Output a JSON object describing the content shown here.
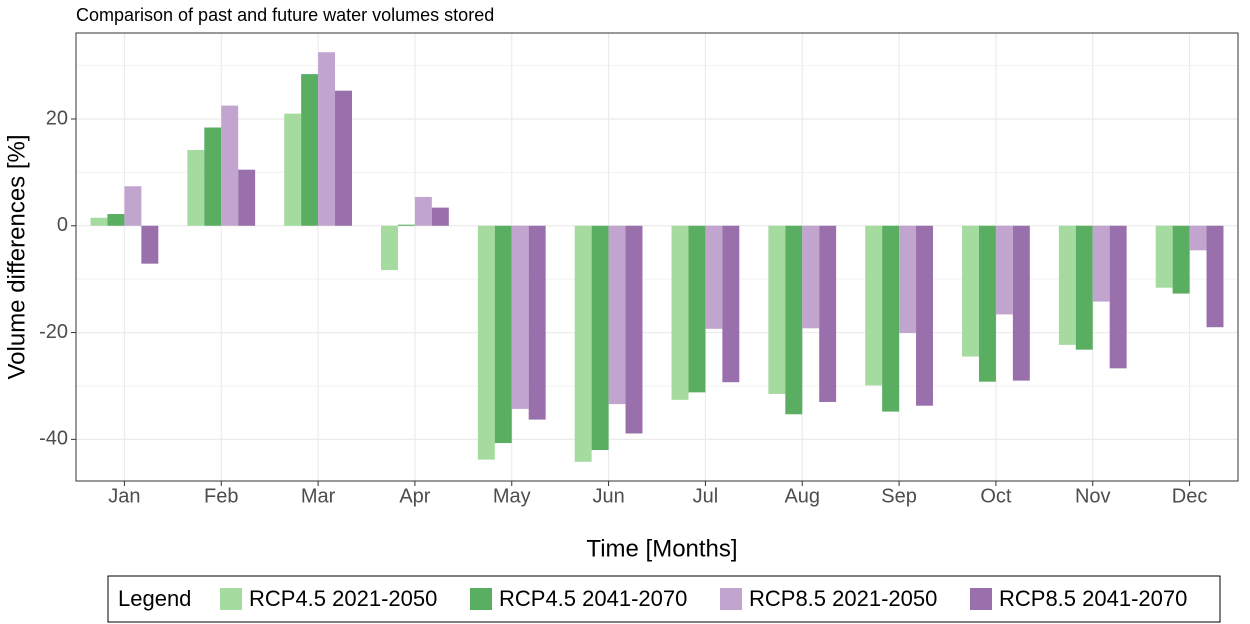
{
  "chart_data": {
    "type": "bar",
    "title": "Comparison of past and future water volumes stored",
    "x_label": "Time [Months]",
    "y_label": "Volume differences [%]",
    "legend_title": "Legend",
    "categories": [
      "Jan",
      "Feb",
      "Mar",
      "Apr",
      "May",
      "Jun",
      "Jul",
      "Aug",
      "Sep",
      "Oct",
      "Nov",
      "Dec"
    ],
    "series": [
      {
        "name": "RCP4.5 2021-2050",
        "color": "#a6dba0",
        "values": [
          1.5,
          14.2,
          21.0,
          -8.3,
          -43.8,
          -44.2,
          -32.6,
          -31.5,
          -29.9,
          -24.5,
          -22.3,
          -11.6
        ]
      },
      {
        "name": "RCP4.5 2041-2070",
        "color": "#5aae61",
        "values": [
          2.2,
          18.4,
          28.4,
          0.2,
          -40.7,
          -42.0,
          -31.2,
          -35.3,
          -34.8,
          -29.2,
          -23.2,
          -12.7
        ]
      },
      {
        "name": "RCP8.5 2021-2050",
        "color": "#c2a5cf",
        "values": [
          7.4,
          22.5,
          32.5,
          5.4,
          -34.3,
          -33.4,
          -19.3,
          -19.2,
          -20.1,
          -16.6,
          -14.2,
          -4.6
        ]
      },
      {
        "name": "RCP8.5 2041-2070",
        "color": "#9970ab",
        "values": [
          -7.1,
          10.5,
          25.3,
          3.4,
          -36.3,
          -38.9,
          -29.3,
          -33.0,
          -33.7,
          -29.0,
          -26.7,
          -19.0
        ]
      }
    ],
    "ylim": [
      -47.8,
      36.1
    ],
    "yticks": [
      -40,
      -20,
      0,
      20
    ],
    "y_minor_ticks": [
      -30,
      -10,
      10,
      30
    ],
    "grid": true
  }
}
